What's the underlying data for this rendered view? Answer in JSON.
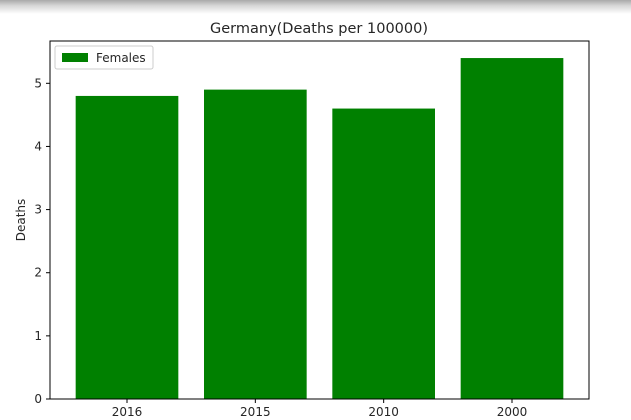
{
  "chart_data": {
    "type": "bar",
    "title": "Germany(Deaths per 100000)",
    "xlabel": "",
    "ylabel": "Deaths",
    "categories": [
      "2016",
      "2015",
      "2010",
      "2000"
    ],
    "series": [
      {
        "name": "Females",
        "values": [
          4.8,
          4.9,
          4.6,
          5.4
        ],
        "color": "#008000"
      }
    ],
    "ylim": [
      0,
      5.67
    ],
    "yticks": [
      0,
      1,
      2,
      3,
      4,
      5
    ],
    "grid": false,
    "legend": "top-left"
  }
}
